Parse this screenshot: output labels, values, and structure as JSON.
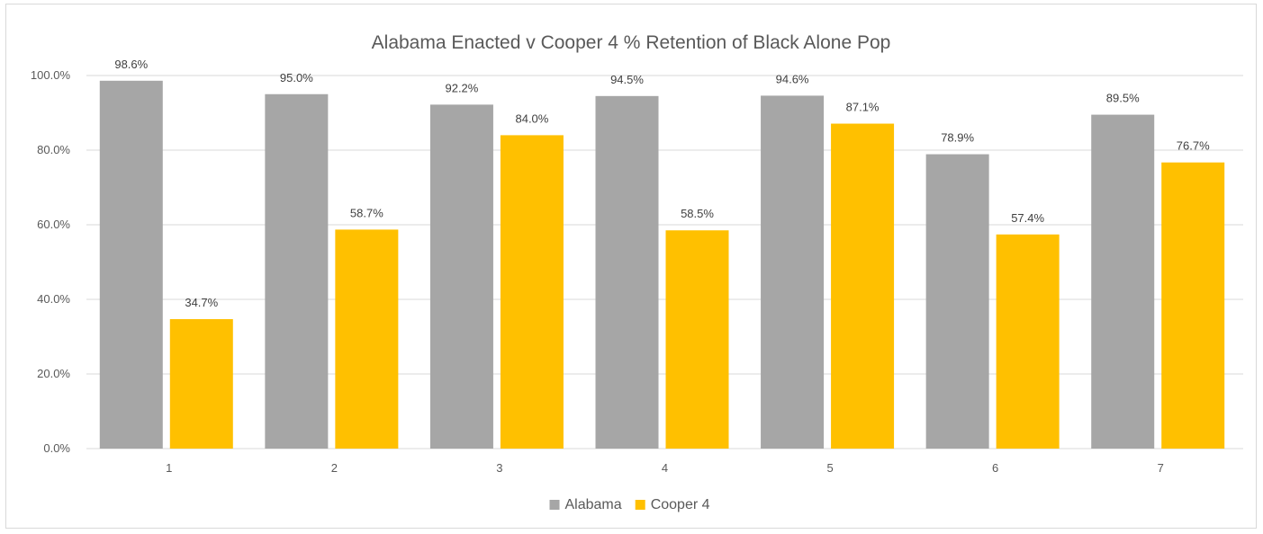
{
  "chart_data": {
    "type": "bar",
    "title": "Alabama Enacted  v Cooper 4 % Retention of Black Alone Pop",
    "xlabel": "",
    "ylabel": "",
    "categories": [
      "1",
      "2",
      "3",
      "4",
      "5",
      "6",
      "7"
    ],
    "series": [
      {
        "name": "Alabama",
        "color": "#a6a6a6",
        "values": [
          98.6,
          95.0,
          92.2,
          94.5,
          94.6,
          78.9,
          89.5
        ],
        "labels": [
          "98.6%",
          "95.0%",
          "92.2%",
          "94.5%",
          "94.6%",
          "78.9%",
          "89.5%"
        ]
      },
      {
        "name": "Cooper 4",
        "color": "#ffc000",
        "values": [
          34.7,
          58.7,
          84.0,
          58.5,
          87.1,
          57.4,
          76.7
        ],
        "labels": [
          "34.7%",
          "58.7%",
          "84.0%",
          "58.5%",
          "87.1%",
          "57.4%",
          "76.7%"
        ]
      }
    ],
    "ylim": [
      0,
      100
    ],
    "yticks": [
      0,
      20,
      40,
      60,
      80,
      100
    ],
    "ytick_labels": [
      "0.0%",
      "20.0%",
      "40.0%",
      "60.0%",
      "80.0%",
      "100.0%"
    ],
    "grid": true,
    "legend_position": "bottom",
    "gridline_color": "#d9d9d9"
  }
}
